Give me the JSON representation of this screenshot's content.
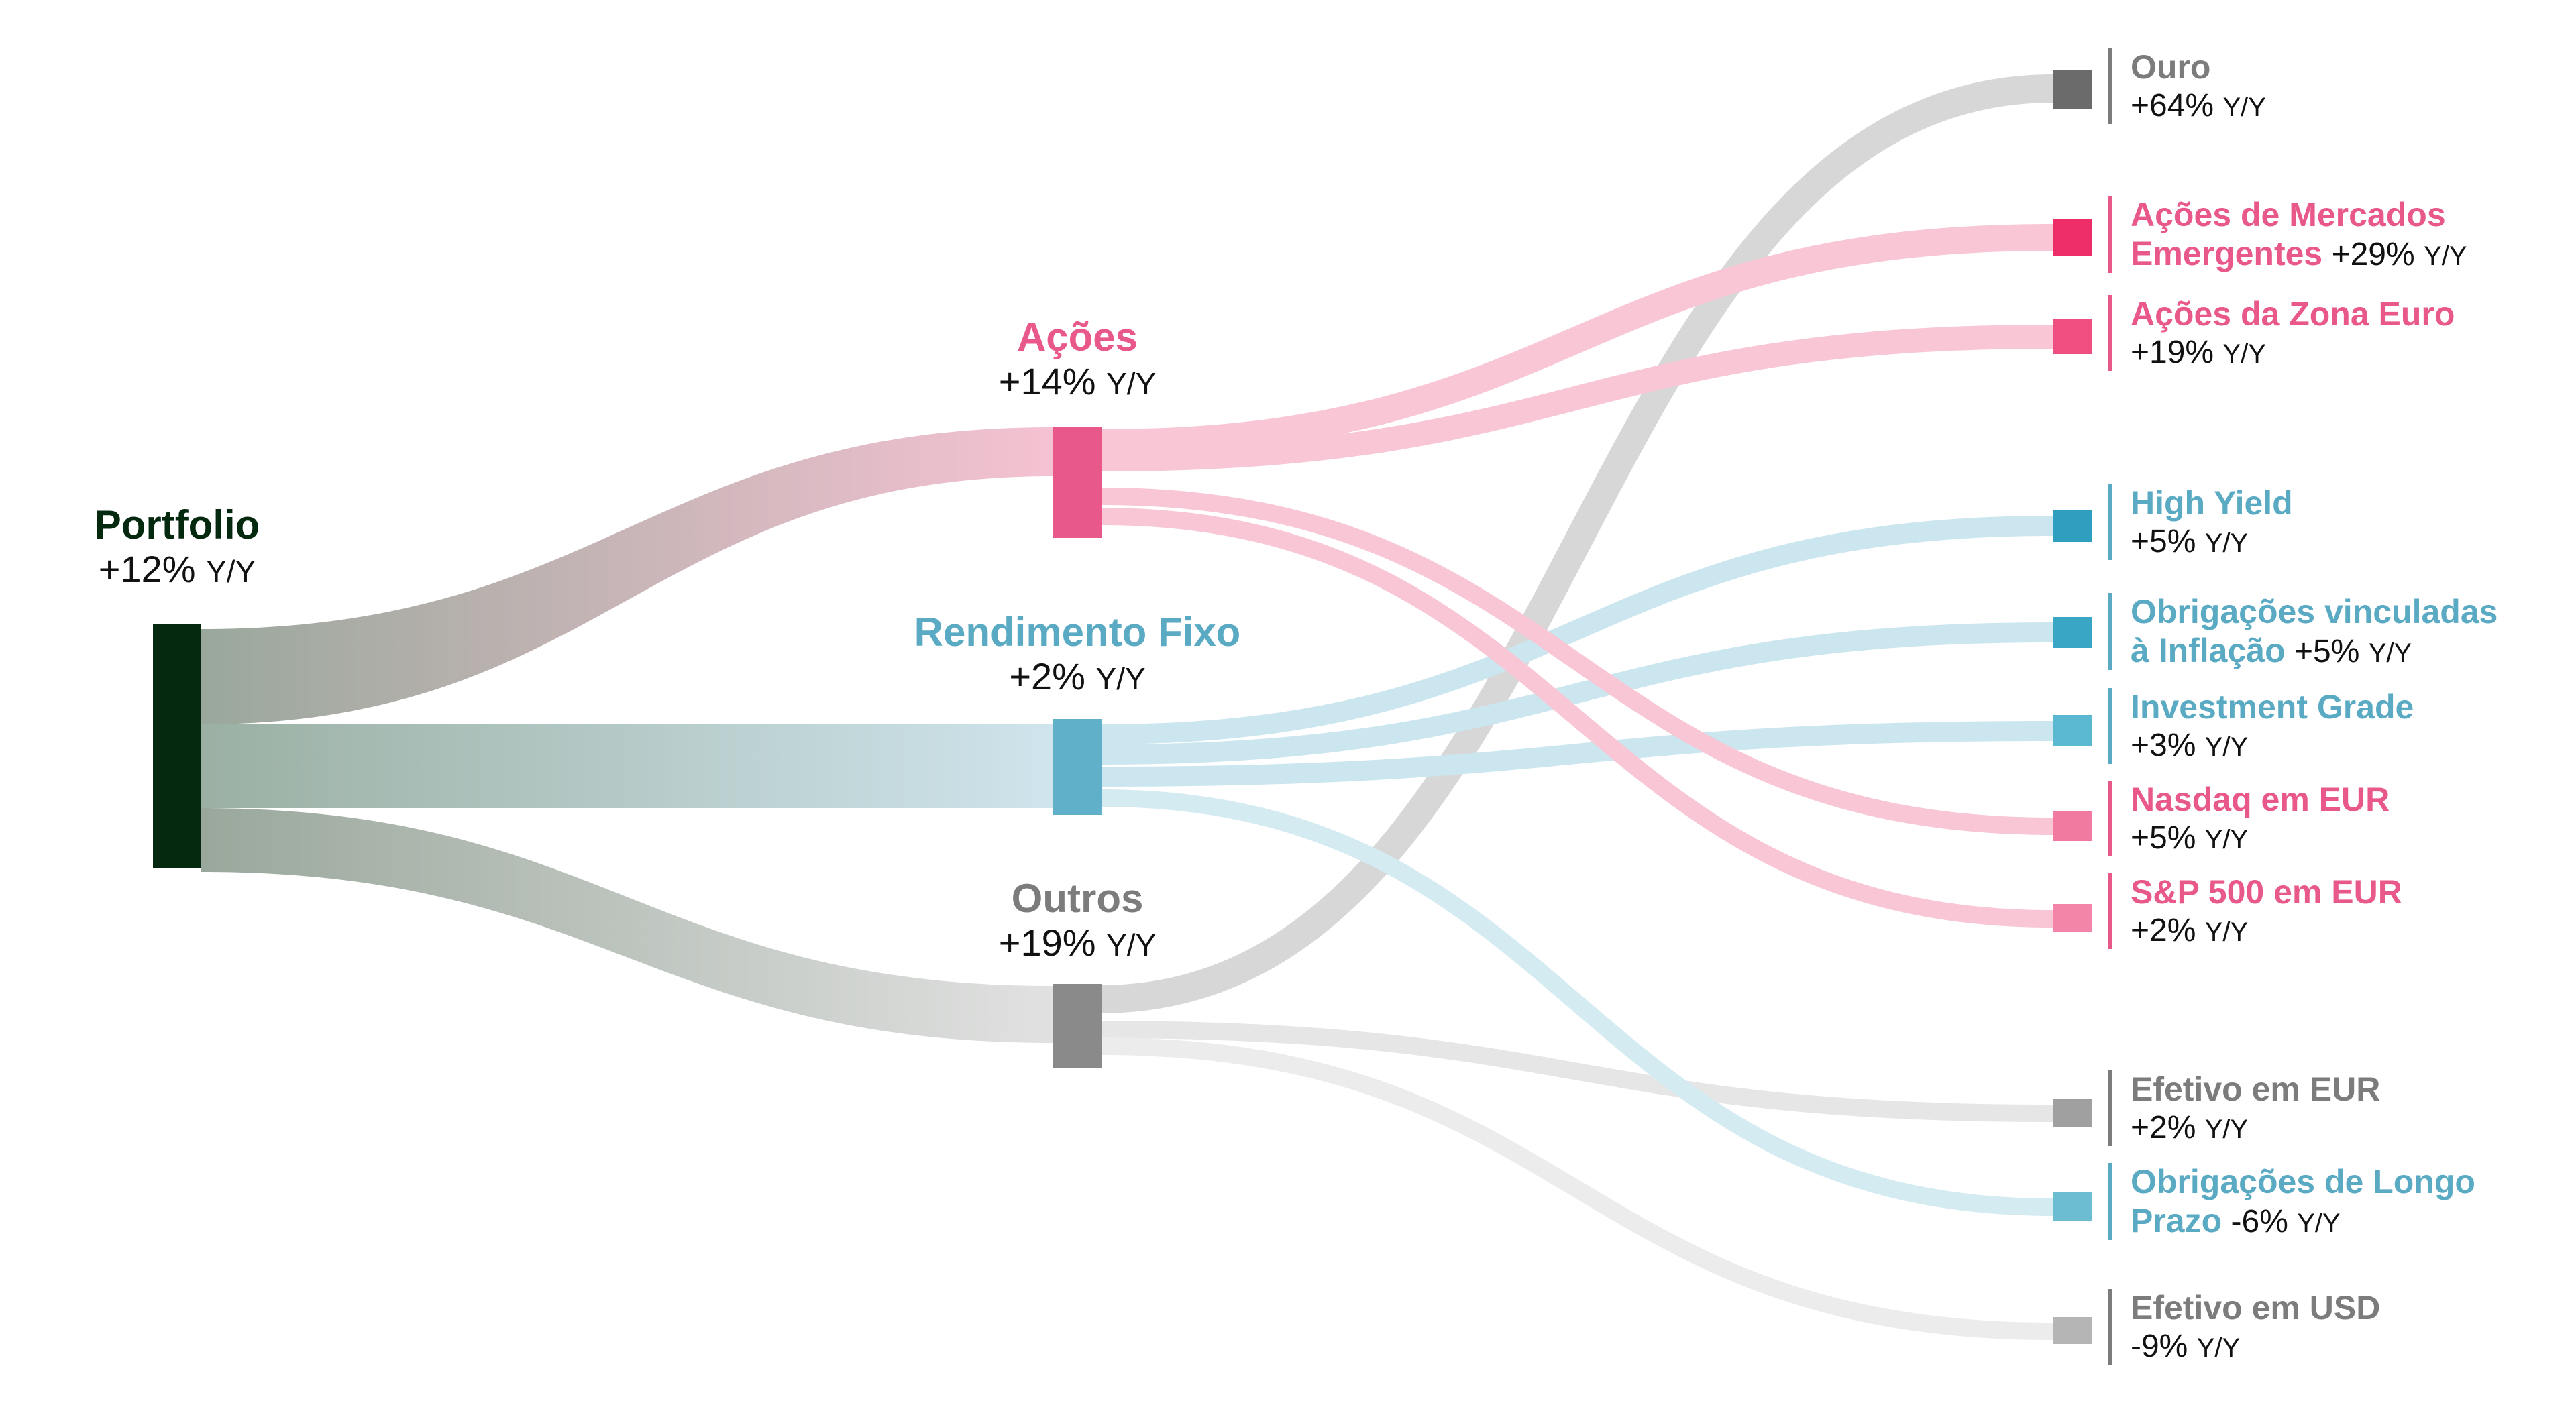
{
  "colors": {
    "root": "#05290f",
    "acoes": "#e8588a",
    "rendimento": "#5fb0c8",
    "outros": "#8a8a8a",
    "grey_text": "#7c7c7c",
    "pink_text": "#e8588a",
    "blue_text": "#5aaac3"
  },
  "root": {
    "name": "Portfolio",
    "change": "+12%",
    "unit": "Y/Y"
  },
  "middle": [
    {
      "key": "acoes",
      "name": "Ações",
      "change": "+14%",
      "unit": "Y/Y",
      "color": "#e8588a"
    },
    {
      "key": "rendimento",
      "name": "Rendimento Fixo",
      "change": "+2%",
      "unit": "Y/Y",
      "color": "#5fb0c8"
    },
    {
      "key": "outros",
      "name": "Outros",
      "change": "+19%",
      "unit": "Y/Y",
      "color": "#8a8a8a"
    }
  ],
  "leaves": [
    {
      "key": "ouro",
      "line1": "Ouro",
      "line2": "",
      "change": "+64%",
      "unit": "Y/Y",
      "parent": "outros",
      "color": "#6b6b6b",
      "text_color": "#7c7c7c"
    },
    {
      "key": "emergentes",
      "line1": "Ações de Mercados",
      "line2": "Emergentes",
      "change": "+29%",
      "unit": "Y/Y",
      "parent": "acoes",
      "color": "#ee2e68",
      "text_color": "#e8588a"
    },
    {
      "key": "zona_euro",
      "line1": "Ações da Zona Euro",
      "line2": "",
      "change": "+19%",
      "unit": "Y/Y",
      "parent": "acoes",
      "color": "#ef4f80",
      "text_color": "#e8588a"
    },
    {
      "key": "high_yield",
      "line1": "High Yield",
      "line2": "",
      "change": "+5%",
      "unit": "Y/Y",
      "parent": "rendimento",
      "color": "#2e9fbf",
      "text_color": "#5aaac3"
    },
    {
      "key": "inflacao",
      "line1": "Obrigações vinculadas",
      "line2": "à Inflação",
      "change": "+5%",
      "unit": "Y/Y",
      "parent": "rendimento",
      "color": "#3aa6c5",
      "text_color": "#5aaac3"
    },
    {
      "key": "investment",
      "line1": "Investment Grade",
      "line2": "",
      "change": "+3%",
      "unit": "Y/Y",
      "parent": "rendimento",
      "color": "#5ab8d0",
      "text_color": "#5aaac3"
    },
    {
      "key": "nasdaq",
      "line1": "Nasdaq em EUR",
      "line2": "",
      "change": "+5%",
      "unit": "Y/Y",
      "parent": "acoes",
      "color": "#f07aa0",
      "text_color": "#e8588a"
    },
    {
      "key": "sp500",
      "line1": "S&P 500 em EUR",
      "line2": "",
      "change": "+2%",
      "unit": "Y/Y",
      "parent": "acoes",
      "color": "#f285a8",
      "text_color": "#e8588a"
    },
    {
      "key": "efetivo_eur",
      "line1": "Efetivo em EUR",
      "line2": "",
      "change": "+2%",
      "unit": "Y/Y",
      "parent": "outros",
      "color": "#a0a0a0",
      "text_color": "#7c7c7c"
    },
    {
      "key": "longo_prazo",
      "line1": "Obrigações de Longo",
      "line2": "Prazo",
      "change": "-6%",
      "unit": "Y/Y",
      "parent": "rendimento",
      "color": "#6cbdd2",
      "text_color": "#5aaac3"
    },
    {
      "key": "efetivo_usd",
      "line1": "Efetivo em USD",
      "line2": "",
      "change": "-9%",
      "unit": "Y/Y",
      "parent": "outros",
      "color": "#b5b5b5",
      "text_color": "#7c7c7c"
    }
  ]
}
